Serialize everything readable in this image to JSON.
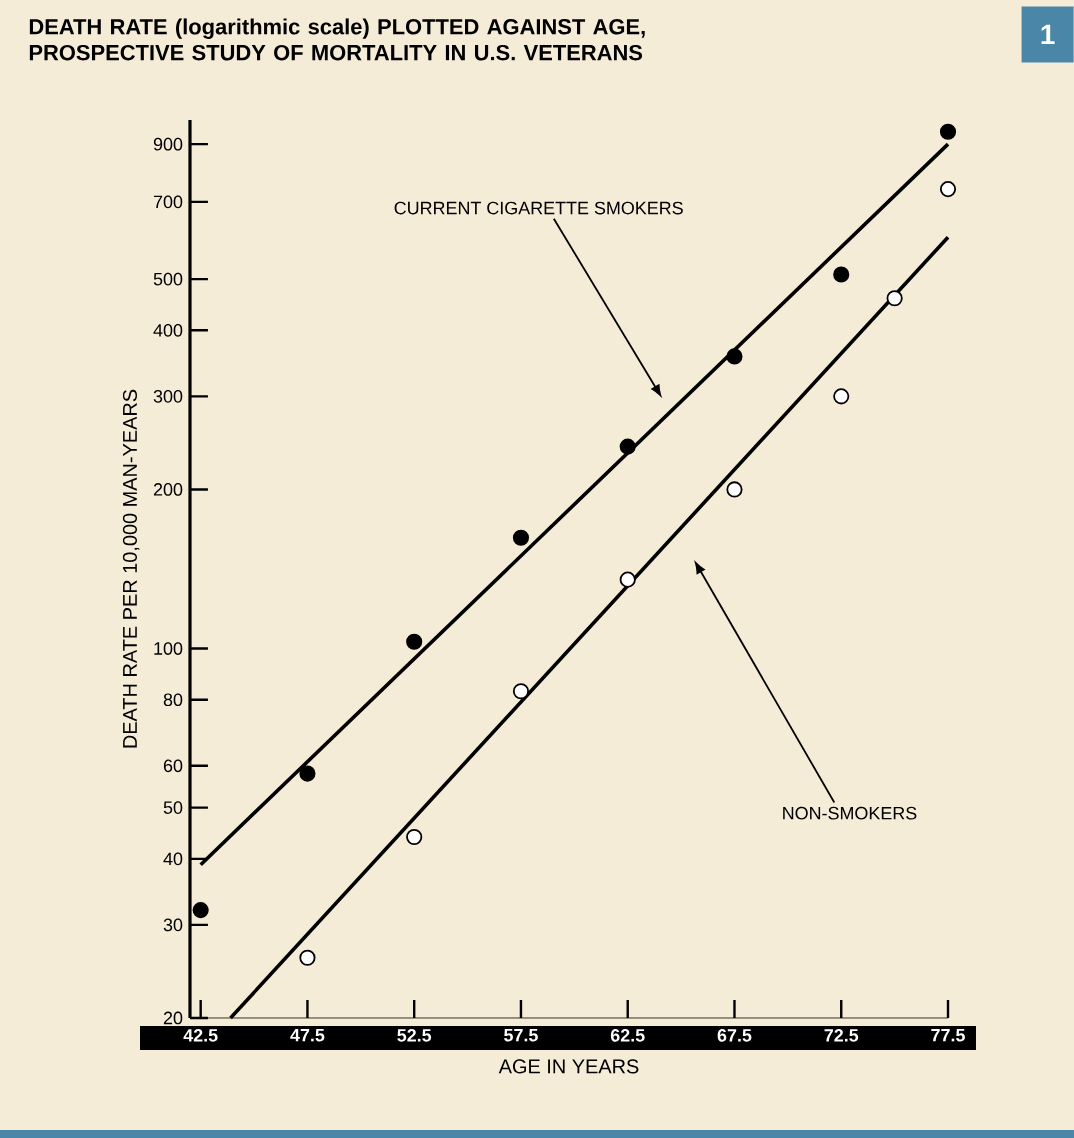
{
  "chart_data": {
    "type": "scatter",
    "title": "DEATH RATE (logarithmic scale) PLOTTED AGAINST AGE,\nPROSPECTIVE STUDY OF MORTALITY IN U.S. VETERANS",
    "xlabel": "AGE IN YEARS",
    "ylabel": "DEATH RATE PER 10,000 MAN-YEARS",
    "log": "y",
    "grid": false,
    "xlim": [
      42,
      77.5
    ],
    "ylim": [
      20,
      1000
    ],
    "xticks": [
      42.5,
      47.5,
      52.5,
      57.5,
      62.5,
      67.5,
      72.5,
      77.5
    ],
    "yticks": [
      20,
      30,
      40,
      50,
      60,
      80,
      100,
      200,
      300,
      400,
      500,
      700,
      900
    ],
    "series": [
      {
        "marker": "circle",
        "color": "#000000",
        "x": [
          42.5,
          47.5,
          52.5,
          57.5,
          62.5,
          67.5,
          72.5,
          77.5
        ],
        "values": [
          32,
          58,
          103,
          162,
          241,
          357,
          510,
          950
        ]
      },
      {
        "marker": "circle",
        "color": "#ffffff",
        "x": [
          47.5,
          52.5,
          57.5,
          62.5,
          67.5,
          72.5,
          75,
          77.5
        ],
        "values": [
          26,
          44,
          83,
          135,
          200,
          300,
          460,
          740
        ]
      },
      {
        "type": "line",
        "marker": "none",
        "color": "#000000",
        "x": [
          42.5,
          77.5
        ],
        "values": [
          39,
          900
        ]
      },
      {
        "type": "line",
        "marker": "none",
        "color": "#000000",
        "x": [
          43.9,
          77.5
        ],
        "values": [
          20,
          600
        ]
      }
    ],
    "annotations": [
      "CURRENT CIGARETTE SMOKERS",
      "NON-SMOKERS",
      "1"
    ]
  }
}
